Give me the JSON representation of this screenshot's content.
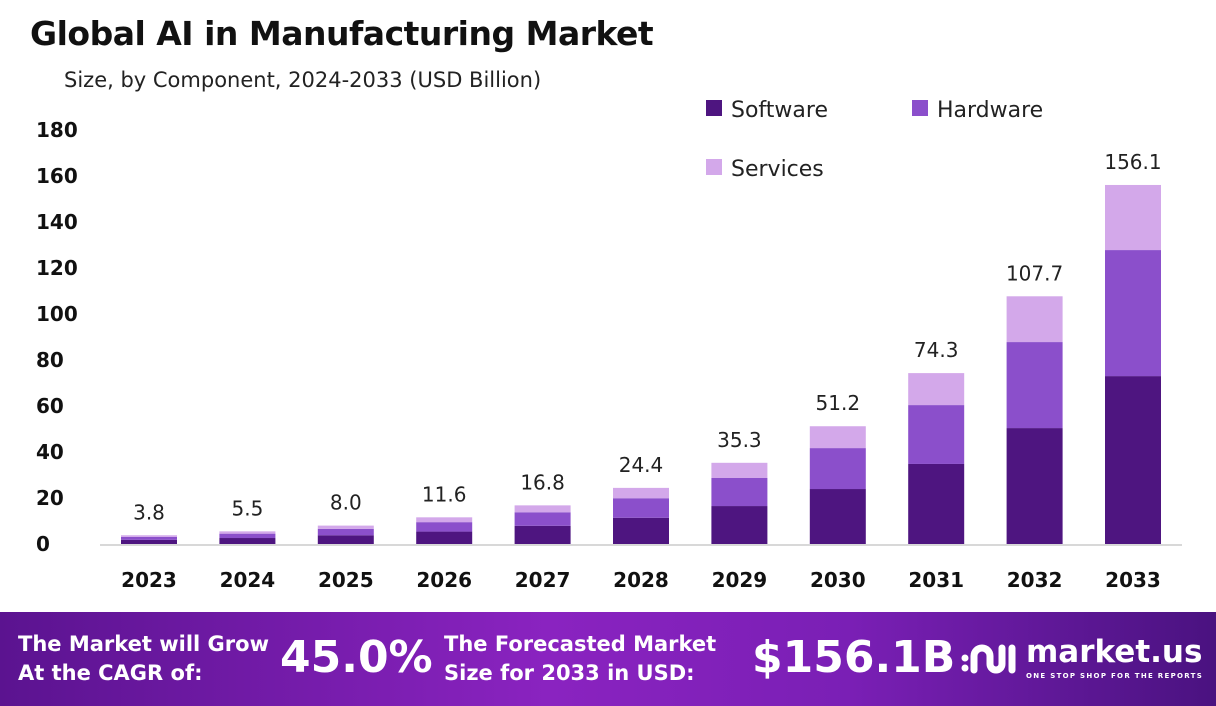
{
  "chart_data": {
    "type": "bar",
    "stacked": true,
    "title": "Global AI in Manufacturing Market",
    "subtitle": "Size, by Component, 2024-2033 (USD Billion)",
    "categories": [
      "2023",
      "2024",
      "2025",
      "2026",
      "2027",
      "2028",
      "2029",
      "2030",
      "2031",
      "2032",
      "2033"
    ],
    "series": [
      {
        "name": "Software",
        "color": "#4e1580",
        "values": [
          1.8,
          2.6,
          3.8,
          5.4,
          7.9,
          11.4,
          16.5,
          23.9,
          34.8,
          50.4,
          73.0
        ]
      },
      {
        "name": "Hardware",
        "color": "#8b4fcb",
        "values": [
          1.3,
          1.9,
          2.8,
          4.1,
          5.9,
          8.5,
          12.2,
          17.8,
          25.6,
          37.4,
          54.8
        ]
      },
      {
        "name": "Services",
        "color": "#d3a8ea",
        "values": [
          0.7,
          1.0,
          1.4,
          2.1,
          3.0,
          4.5,
          6.6,
          9.5,
          13.9,
          19.9,
          28.3
        ]
      }
    ],
    "totals": [
      "3.8",
      "5.5",
      "8.0",
      "11.6",
      "16.8",
      "24.4",
      "35.3",
      "51.2",
      "74.3",
      "107.7",
      "156.1"
    ],
    "yticks": [
      0,
      20,
      40,
      60,
      80,
      100,
      120,
      140,
      160,
      180
    ],
    "ylim": [
      0,
      180
    ],
    "xlabel": "",
    "ylabel": "",
    "grid": false,
    "legend": "top-right"
  },
  "footer": {
    "cagr_label": "The Market will Grow At the CAGR of:",
    "cagr_line1": "The Market will Grow",
    "cagr_line2": "At the CAGR of:",
    "cagr_value": "45.0%",
    "forecast_line1": "The Forecasted Market",
    "forecast_line2": "Size for 2033 in USD:",
    "forecast_value": "$156.1B",
    "logo_name": "market.us",
    "logo_tagline": "ONE STOP SHOP FOR THE REPORTS"
  }
}
